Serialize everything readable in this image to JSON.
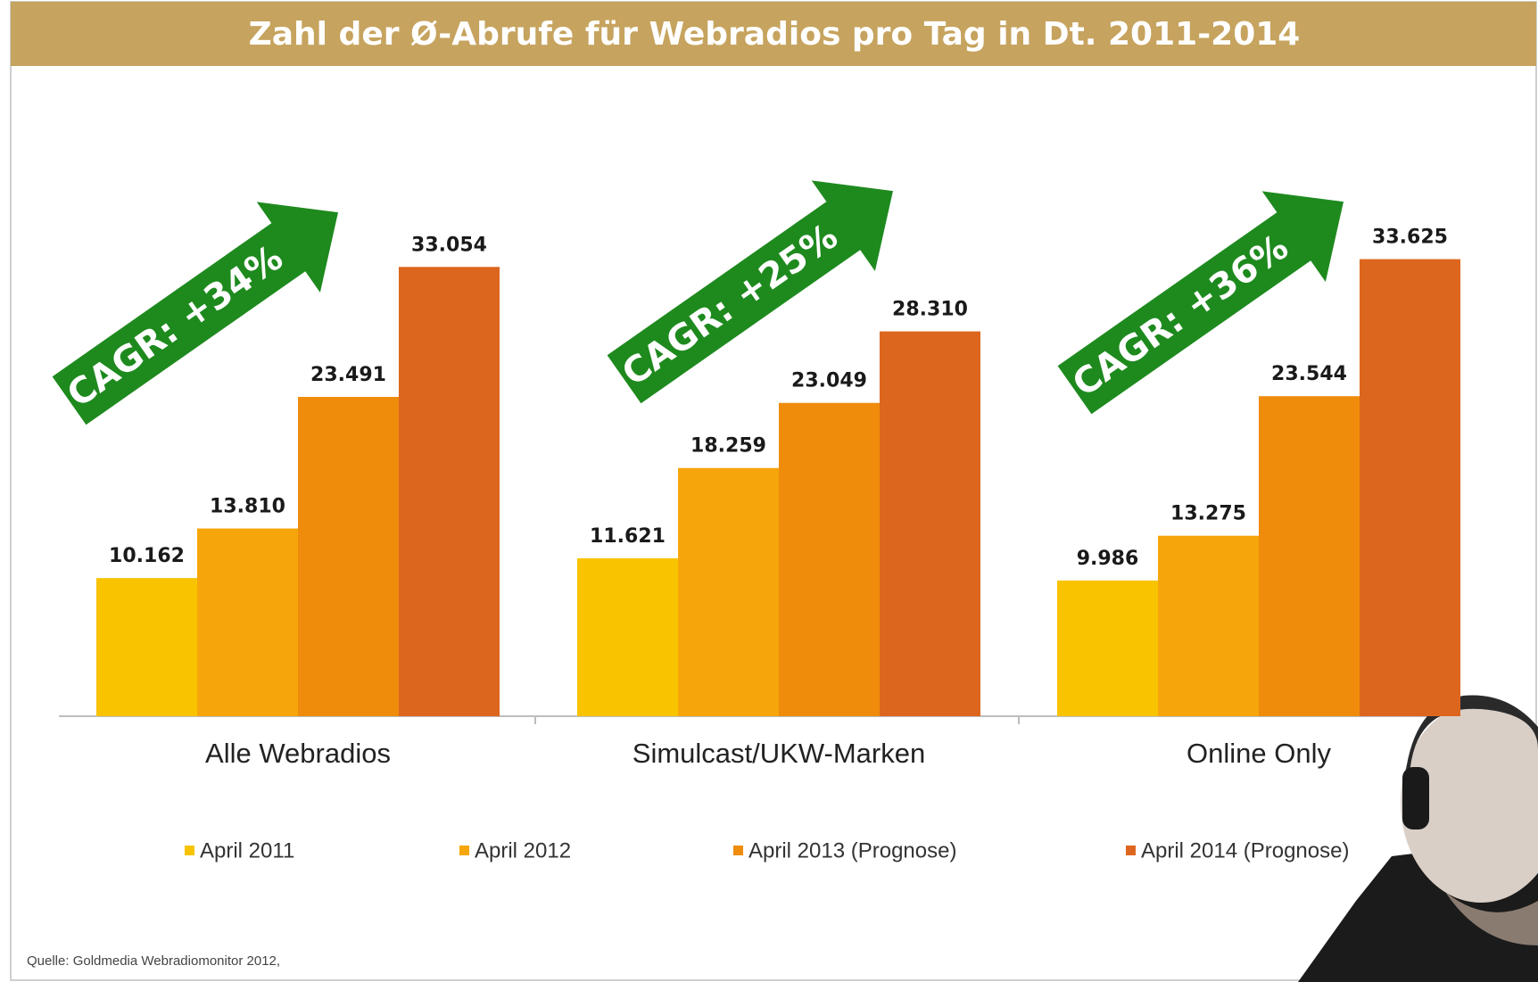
{
  "chart_data": {
    "type": "bar",
    "title": "Zahl der Ø-Abrufe für Webradios pro Tag in Dt. 2011-2014",
    "categories": [
      "Alle Webradios",
      "Simulcast/UKW-Marken",
      "Online Only"
    ],
    "series": [
      {
        "name": "April 2011",
        "color": "#f9c300",
        "values": [
          10162,
          11621,
          9986
        ],
        "value_labels": [
          "10.162",
          "11.621",
          "9.986"
        ]
      },
      {
        "name": "April 2012",
        "color": "#f6a60a",
        "values": [
          13810,
          18259,
          13275
        ],
        "value_labels": [
          "13.810",
          "18.259",
          "13.275"
        ]
      },
      {
        "name": "April 2013 (Prognose)",
        "color": "#ef8c0c",
        "values": [
          23491,
          23049,
          23544
        ],
        "value_labels": [
          "23.491",
          "23.049",
          "23.544"
        ]
      },
      {
        "name": "April 2014 (Prognose)",
        "color": "#dd661e",
        "values": [
          33054,
          28310,
          33625
        ],
        "value_labels": [
          "33.054",
          "28.310",
          "33.625"
        ]
      }
    ],
    "annotations": [
      "CAGR: +34%",
      "CAGR: +25%",
      "CAGR: +36%"
    ],
    "source": "Quelle: Goldmedia Webradiomonitor 2012,"
  }
}
